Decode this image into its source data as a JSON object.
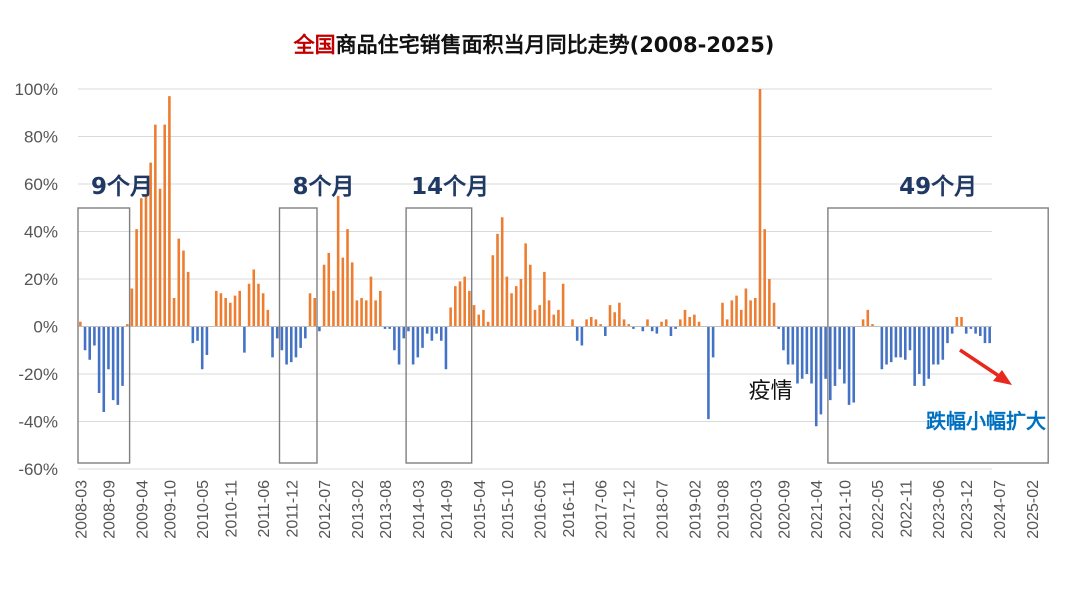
{
  "title": {
    "highlight": "全国",
    "rest": "商品住宅销售面积当月同比走势(2008-2025)"
  },
  "colors": {
    "positive": "#ed7d31",
    "negative": "#4472c4",
    "highlight": "#c00000",
    "note": "#0070c0",
    "arrow": "#e8281e"
  },
  "chart_data": {
    "type": "bar",
    "x_start": "2008-03",
    "x_end": "2025-05",
    "x_tick_labels": [
      "2008-03",
      "2008-09",
      "2009-04",
      "2009-10",
      "2010-05",
      "2010-11",
      "2011-06",
      "2011-12",
      "2012-07",
      "2013-02",
      "2013-08",
      "2014-03",
      "2014-09",
      "2015-04",
      "2015-10",
      "2016-05",
      "2016-11",
      "2017-06",
      "2017-12",
      "2018-07",
      "2019-02",
      "2019-08",
      "2020-03",
      "2020-09",
      "2021-04",
      "2021-10",
      "2022-05",
      "2022-11",
      "2023-06",
      "2023-12",
      "2024-07",
      "2025-02"
    ],
    "y_tick_labels": [
      "100%",
      "80%",
      "60%",
      "40%",
      "20%",
      "0%",
      "-20%",
      "-40%",
      "-60%"
    ],
    "ylim": [
      -60,
      100
    ],
    "unit": "%",
    "values": [
      2,
      -10,
      -14,
      -8,
      -28,
      -36,
      -18,
      -31,
      -33,
      -25,
      1,
      16,
      41,
      54,
      55,
      69,
      85,
      58,
      85,
      97,
      12,
      37,
      32,
      23,
      -7,
      -6,
      -18,
      -12,
      0,
      15,
      14,
      12,
      10,
      13,
      15,
      -11,
      18,
      24,
      18,
      14,
      7,
      -13,
      -5,
      -10,
      -16,
      -15,
      -13,
      -9,
      -5,
      14,
      12,
      -2,
      26,
      31,
      15,
      55,
      29,
      41,
      27,
      11,
      12,
      11,
      21,
      11,
      15,
      -1,
      -1,
      -10,
      -16,
      -5,
      -2,
      -16,
      -13,
      -9,
      -3,
      -6,
      -3,
      -6,
      -18,
      8,
      17,
      19,
      21,
      15,
      9,
      5,
      7,
      2,
      30,
      39,
      46,
      21,
      14,
      17,
      20,
      35,
      26,
      7,
      9,
      23,
      11,
      5,
      7,
      18,
      0,
      3,
      -6,
      -8,
      3,
      4,
      3,
      1,
      -4,
      9,
      6,
      10,
      3,
      1,
      -1,
      0,
      -2,
      3,
      -2,
      -3,
      2,
      3,
      -4,
      -1,
      3,
      7,
      4,
      5,
      2,
      0,
      -39,
      -13,
      0,
      10,
      3,
      11,
      13,
      7,
      16,
      11,
      12,
      100,
      41,
      20,
      10,
      -1,
      -10,
      -16,
      -16,
      -24,
      -22,
      -20,
      -24,
      -42,
      -37,
      -22,
      -31,
      -25,
      -18,
      -24,
      -33,
      -32,
      0,
      3,
      7,
      1,
      0,
      -18,
      -16,
      -15,
      -13,
      -13,
      -14,
      -10,
      -25,
      -20,
      -25,
      -22,
      -16,
      -16,
      -14,
      -7,
      -3,
      4,
      4,
      -3,
      -1,
      -3,
      -4,
      -7,
      -7
    ],
    "annotations": [
      {
        "label": "9个月",
        "from": "2008-03",
        "to": "2009-01"
      },
      {
        "label": "8个月",
        "from": "2011-10",
        "to": "2012-05"
      },
      {
        "label": "14个月",
        "from": "2014-01",
        "to": "2015-02"
      },
      {
        "label": "49个月",
        "from": "2021-07",
        "to": "2025-05"
      },
      {
        "label": "疫情",
        "at": "2020-02"
      },
      {
        "label": "跌幅小幅扩大",
        "near": "2025-05"
      }
    ],
    "grid": true
  }
}
